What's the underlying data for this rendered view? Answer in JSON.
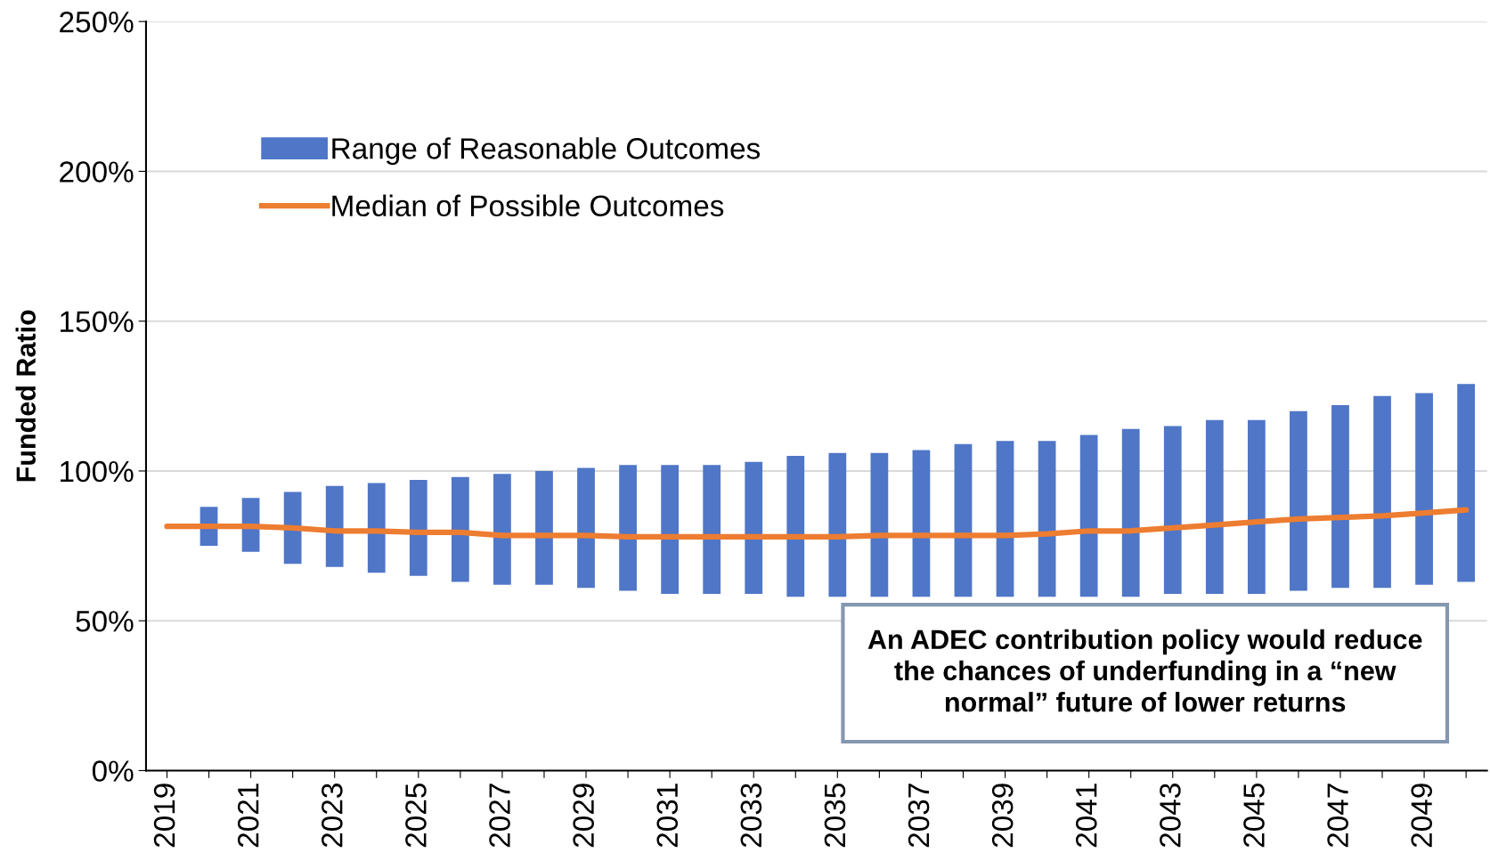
{
  "chart_data": {
    "type": "bar",
    "ylabel": "Funded Ratio",
    "categories": [
      "2019",
      null,
      "2021",
      null,
      "2023",
      null,
      "2025",
      null,
      "2027",
      null,
      "2029",
      null,
      "2031",
      null,
      "2033",
      null,
      "2035",
      null,
      "2037",
      null,
      "2039",
      null,
      "2041",
      null,
      "2043",
      null,
      "2045",
      null,
      "2047",
      null,
      "2049",
      null
    ],
    "series": [
      {
        "name": "Range of Reasonable Outcomes",
        "color": "#4f76c7",
        "base": [
          null,
          75,
          73,
          69,
          68,
          66,
          65,
          63,
          62,
          62,
          61,
          60,
          59,
          59,
          59,
          58,
          58,
          58,
          58,
          58,
          58,
          58,
          58,
          58,
          59,
          59,
          59,
          60,
          61,
          61,
          62,
          63
        ],
        "values": [
          null,
          13,
          18,
          24,
          27,
          30,
          32,
          35,
          37,
          38,
          40,
          42,
          43,
          43,
          44,
          47,
          48,
          48,
          49,
          51,
          52,
          52,
          54,
          56,
          56,
          58,
          58,
          60,
          61,
          64,
          64,
          66
        ]
      },
      {
        "name": "Median of Possible Outcomes",
        "type": "line",
        "color": "#ed7d31",
        "values": [
          81.5,
          81.5,
          81.5,
          81,
          80,
          80,
          79.5,
          79.5,
          78.5,
          78.5,
          78.5,
          78,
          78,
          78,
          78,
          78,
          78,
          78.5,
          78.5,
          78.5,
          78.5,
          79,
          80,
          80,
          81,
          82,
          83,
          84,
          84.5,
          85,
          86,
          87
        ]
      }
    ],
    "ylim": [
      0,
      250
    ],
    "yticks": [
      {
        "value": 0,
        "label": "0%"
      },
      {
        "value": 50,
        "label": "50%"
      },
      {
        "value": 100,
        "label": "100%"
      },
      {
        "value": 150,
        "label": "150%"
      },
      {
        "value": 200,
        "label": "200%"
      },
      {
        "value": 250,
        "label": "250%"
      }
    ],
    "grid": "y",
    "legend": "top left",
    "annotations": [
      "An ADEC contribution policy would reduce\nthe chances of underfunding in a “new\nnormal” future of lower returns"
    ]
  }
}
